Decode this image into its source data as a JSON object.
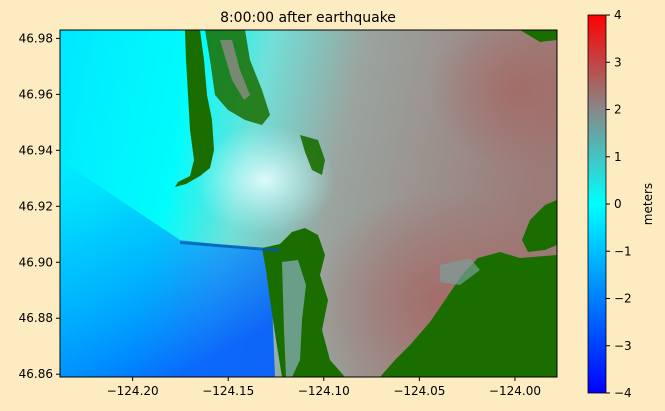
{
  "chart_data": {
    "type": "heatmap",
    "title": "8:00:00 after earthquake",
    "xlabel": "",
    "ylabel": "",
    "xlim": [
      -124.238,
      -123.978
    ],
    "ylim": [
      46.859,
      46.983
    ],
    "x_ticks": [
      -124.2,
      -124.15,
      -124.1,
      -124.05,
      -124.0
    ],
    "x_tick_labels": [
      "−124.20",
      "−124.15",
      "−124.10",
      "−124.05",
      "−124.00"
    ],
    "y_ticks": [
      46.86,
      46.88,
      46.9,
      46.92,
      46.94,
      46.96,
      46.98
    ],
    "y_tick_labels": [
      "46.86",
      "46.88",
      "46.90",
      "46.92",
      "46.94",
      "46.96",
      "46.98"
    ],
    "grid": false,
    "colorbar": {
      "label": "meters",
      "range": [
        -4,
        4
      ],
      "ticks": [
        4,
        3,
        2,
        1,
        0,
        -1,
        -2,
        -3,
        -4
      ],
      "tick_labels": [
        "4",
        "3",
        "2",
        "1",
        "0",
        "−1",
        "−2",
        "−3",
        "−4"
      ],
      "colormap": [
        "#0000ff",
        "#00ffff",
        "#888888",
        "#ff0000"
      ]
    },
    "land_color": "#1a6e00",
    "values_description_levels": {
      "open_ocean_west": -0.4,
      "open_ocean_southwest": -1.5,
      "bay_mouth": 0.3,
      "inner_bay_east": 2.2
    }
  },
  "colors": {
    "background": "#fdecc1",
    "land": "#1a6e00",
    "land_dark": "#165c00"
  }
}
